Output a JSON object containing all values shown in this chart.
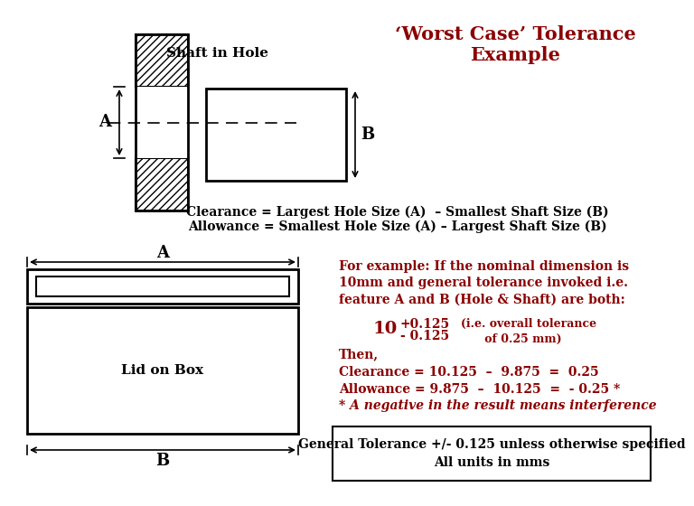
{
  "title": "‘Worst Case’ Tolerance\nExample",
  "title_color": "#8B0000",
  "title_fontsize": 15,
  "bg_color": "#FFFFFF",
  "text_color": "#000000",
  "dark_red": "#8B0000",
  "shaft_label": "Shaft in Hole",
  "label_A": "A",
  "label_B": "B",
  "clearance_text": "Clearance = Largest Hole Size (A)  – Smallest Shaft Size (B)",
  "allowance_text": "Allowance = Smallest Hole Size (A) – Largest Shaft Size (B)",
  "for_example_text": "For example: If the nominal dimension is\n10mm and general tolerance invoked i.e.\nfeature A and B (Hole & Shaft) are both:",
  "then_text": "Then,\nClearance = 10.125  –  9.875  =  0.25\nAllowance = 9.875  –  10.125  =  - 0.25 *",
  "negative_note": "* A negative in the result means interference",
  "footer_text": "General Tolerance +/- 0.125 unless otherwise specified\nAll units in mms",
  "lid_label": "Lid on Box"
}
